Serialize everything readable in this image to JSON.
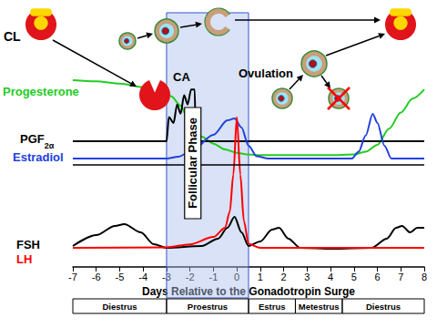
{
  "chart_data": {
    "type": "line",
    "xlabel": "Days Relative to the Gonadotropin Surge",
    "xlim": [
      -7,
      8
    ],
    "xticks": [
      -7,
      -6,
      -5,
      -4,
      -3,
      -2,
      -1,
      0,
      1,
      2,
      3,
      4,
      5,
      6,
      7,
      8
    ],
    "ylim": [
      0,
      100
    ],
    "grid": false,
    "tick_labels": "x",
    "series": [
      {
        "name": "Progesterone",
        "color": "#22cc22",
        "x": [
          -7,
          -6,
          -5,
          -4,
          -3.5,
          -3,
          -2.8,
          -2.4,
          -2.1,
          -1.8,
          -1.5,
          -1,
          -0.5,
          0,
          0.5,
          1,
          2,
          3,
          4,
          5,
          5.5,
          6,
          6.5,
          7,
          7.5,
          8
        ],
        "values": [
          81,
          80.5,
          79.5,
          78,
          76.5,
          75,
          74,
          70,
          64.5,
          60,
          56.5,
          53.5,
          51,
          49.5,
          48.8,
          48.5,
          48.5,
          48.5,
          48.5,
          48.8,
          50,
          53,
          60,
          67,
          73,
          77
        ]
      },
      {
        "name": "PGF2α",
        "color": "#000000",
        "x": [
          -7,
          -3,
          -2.9,
          -2.7,
          -2.55,
          -2.4,
          -2.25,
          -2.1,
          -1.95,
          -1.8,
          -1.75,
          8
        ],
        "values": [
          54.5,
          54.5,
          65,
          62.5,
          70.5,
          66.5,
          74.5,
          70.5,
          77,
          77,
          54.5,
          54.5
        ]
      },
      {
        "name": "Estradiol",
        "color": "#2040e0",
        "x": [
          -7,
          -3,
          -2.5,
          -1.9,
          -1,
          -0.4,
          -0.1,
          0.2,
          0.5,
          0.85,
          1.35,
          4.9,
          5.2,
          5.5,
          5.8,
          6,
          6.3,
          6.6,
          8
        ],
        "values": [
          47,
          47,
          47.8,
          50.6,
          57.3,
          63.6,
          64.4,
          60.5,
          52.6,
          48,
          47,
          47,
          50,
          57,
          66.4,
          62.5,
          52.6,
          47,
          47
        ]
      },
      {
        "name": "FSH",
        "color": "#000000",
        "x": [
          -7,
          -6,
          -5.2,
          -4.8,
          -4.1,
          -3.55,
          -3,
          -1.5,
          -0.8,
          -0.4,
          -0.1,
          0.2,
          0.5,
          1,
          1.5,
          1.8,
          2.2,
          2.7,
          4.1,
          5.75,
          6.4,
          6.8,
          7.05,
          7.4,
          7.7,
          8
        ],
        "values": [
          9.1,
          13.8,
          17.8,
          18.6,
          15,
          9.9,
          8.3,
          9.1,
          12.3,
          17,
          21.7,
          15,
          9.1,
          11.1,
          16.2,
          17,
          12.3,
          8.3,
          7.9,
          8.3,
          12.3,
          17,
          17.8,
          15,
          17,
          17
        ]
      },
      {
        "name": "LH",
        "color": "#ff0000",
        "x": [
          -7,
          -3,
          -2,
          -1,
          -0.5,
          -0.3,
          -0.15,
          0,
          0.15,
          0.3,
          0.5,
          1,
          8
        ],
        "values": [
          8.3,
          8.5,
          9.8,
          13,
          17,
          24,
          40,
          65,
          40,
          20,
          10,
          8.3,
          8.3
        ]
      }
    ],
    "baselines": [
      44.3
    ],
    "shaded_region": {
      "label": "Follicular Phase",
      "from": -3,
      "to": 0.5
    },
    "phases": [
      {
        "label": "Diestrus",
        "from": -7,
        "to": -3
      },
      {
        "label": "Proestrus",
        "from": -3,
        "to": 0.5
      },
      {
        "label": "Estrus",
        "from": 0.5,
        "to": 2.5
      },
      {
        "label": "Metestrus",
        "from": 2.5,
        "to": 4.5
      },
      {
        "label": "Diestrus",
        "from": 4.5,
        "to": 8
      }
    ],
    "annotations": [
      "CL",
      "CA",
      "Ovulation"
    ]
  }
}
